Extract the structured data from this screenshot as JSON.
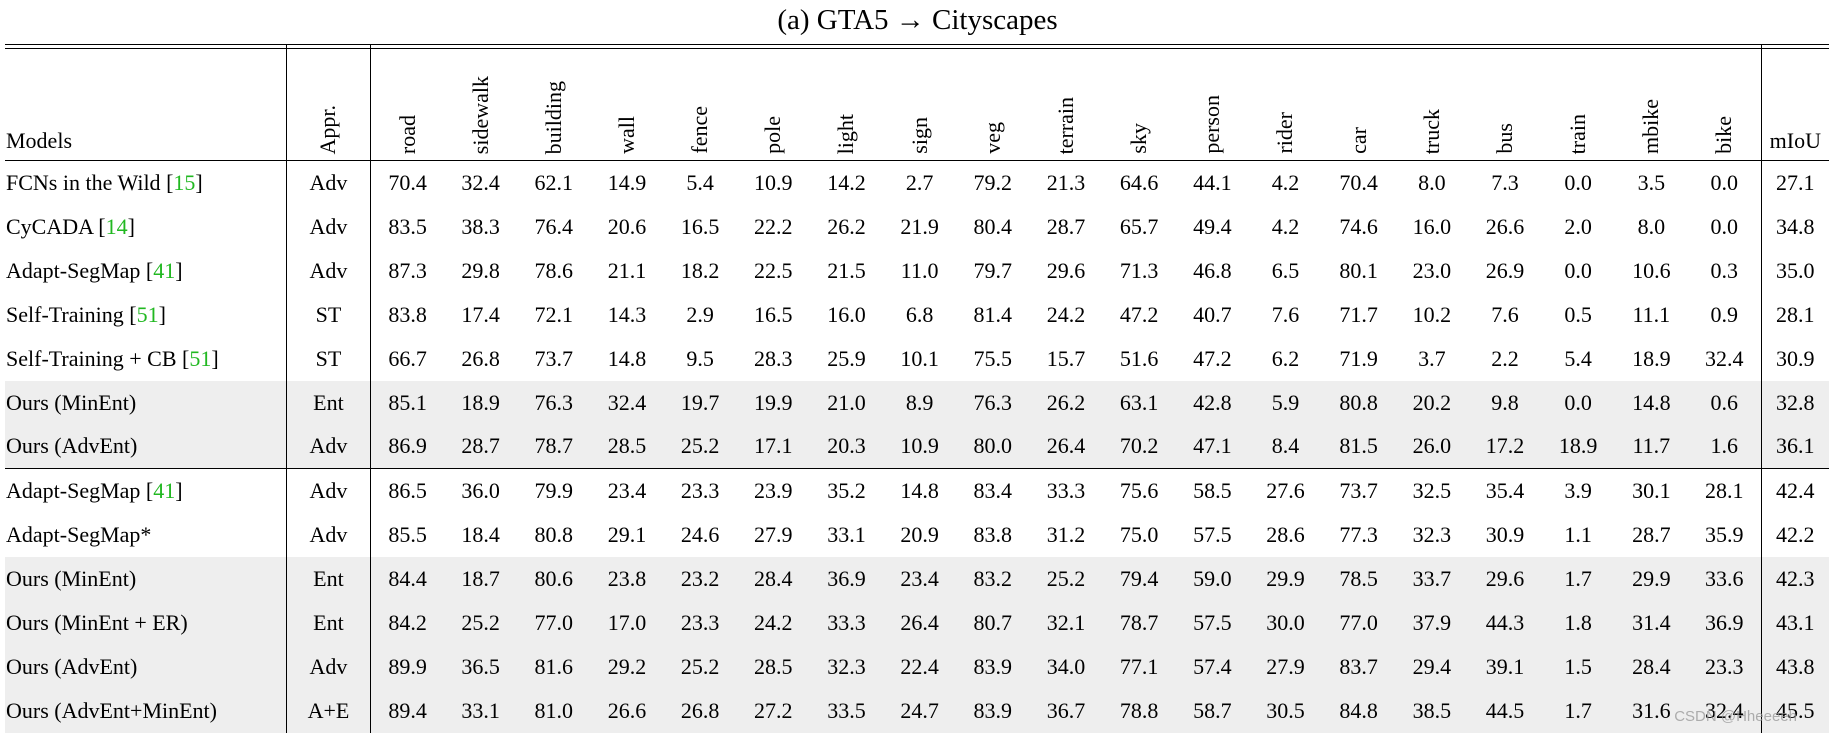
{
  "caption": "(a) GTA5 → Cityscapes",
  "headers": {
    "models": "Models",
    "appr": "Appr.",
    "classes": [
      "road",
      "sidewalk",
      "building",
      "wall",
      "fence",
      "pole",
      "light",
      "sign",
      "veg",
      "terrain",
      "sky",
      "person",
      "rider",
      "car",
      "truck",
      "bus",
      "train",
      "mbike",
      "bike"
    ],
    "miou": "mIoU"
  },
  "group1": [
    {
      "model": "FCNs in the Wild ",
      "ref": "15",
      "appr": "Adv",
      "shaded": false,
      "values": [
        "70.4",
        "32.4",
        "62.1",
        "14.9",
        "5.4",
        "10.9",
        "14.2",
        "2.7",
        "79.2",
        "21.3",
        "64.6",
        "44.1",
        "4.2",
        "70.4",
        "8.0",
        "7.3",
        "0.0",
        "3.5",
        "0.0"
      ],
      "bold": [],
      "miou": "27.1",
      "miou_bold": false
    },
    {
      "model": "CyCADA ",
      "ref": "14",
      "appr": "Adv",
      "shaded": false,
      "values": [
        "83.5",
        "38.3",
        "76.4",
        "20.6",
        "16.5",
        "22.2",
        "26.2",
        "21.9",
        "80.4",
        "28.7",
        "65.7",
        "49.4",
        "4.2",
        "74.6",
        "16.0",
        "26.6",
        "2.0",
        "8.0",
        "0.0"
      ],
      "bold": [
        1
      ],
      "miou": "34.8",
      "miou_bold": false
    },
    {
      "model": "Adapt-SegMap ",
      "ref": "41",
      "appr": "Adv",
      "shaded": false,
      "values": [
        "87.3",
        "29.8",
        "78.6",
        "21.1",
        "18.2",
        "22.5",
        "21.5",
        "11.0",
        "79.7",
        "29.6",
        "71.3",
        "46.8",
        "6.5",
        "80.1",
        "23.0",
        "26.9",
        "0.0",
        "10.6",
        "0.3"
      ],
      "bold": [],
      "miou": "35.0",
      "miou_bold": false
    },
    {
      "model": "Self-Training ",
      "ref": "51",
      "appr": "ST",
      "shaded": false,
      "values": [
        "83.8",
        "17.4",
        "72.1",
        "14.3",
        "2.9",
        "16.5",
        "16.0",
        "6.8",
        "81.4",
        "24.2",
        "47.2",
        "40.7",
        "7.6",
        "71.7",
        "10.2",
        "7.6",
        "0.5",
        "11.1",
        "0.9"
      ],
      "bold": [],
      "miou": "28.1",
      "miou_bold": false
    },
    {
      "model": "Self-Training + CB ",
      "ref": "51",
      "appr": "ST",
      "shaded": false,
      "values": [
        "66.7",
        "26.8",
        "73.7",
        "14.8",
        "9.5",
        "28.3",
        "25.9",
        "10.1",
        "75.5",
        "15.7",
        "51.6",
        "47.2",
        "6.2",
        "71.9",
        "3.7",
        "2.2",
        "5.4",
        "18.9",
        "32.4"
      ],
      "bold": [],
      "miou": "30.9",
      "miou_bold": false
    },
    {
      "model": "Ours (MinEnt)",
      "ref": "",
      "appr": "Ent",
      "shaded": true,
      "values": [
        "85.1",
        "18.9",
        "76.3",
        "32.4",
        "19.7",
        "19.9",
        "21.0",
        "8.9",
        "76.3",
        "26.2",
        "63.1",
        "42.8",
        "5.9",
        "80.8",
        "20.2",
        "9.8",
        "0.0",
        "14.8",
        "0.6"
      ],
      "bold": [],
      "miou": "32.8",
      "miou_bold": false
    },
    {
      "model": "Ours (AdvEnt)",
      "ref": "",
      "appr": "Adv",
      "shaded": true,
      "values": [
        "86.9",
        "28.7",
        "78.7",
        "28.5",
        "25.2",
        "17.1",
        "20.3",
        "10.9",
        "80.0",
        "26.4",
        "70.2",
        "47.1",
        "8.4",
        "81.5",
        "26.0",
        "17.2",
        "18.9",
        "11.7",
        "1.6"
      ],
      "bold": [
        16
      ],
      "miou": "36.1",
      "miou_bold": false
    }
  ],
  "group2": [
    {
      "model": "Adapt-SegMap ",
      "ref": "41",
      "appr": "Adv",
      "shaded": false,
      "values": [
        "86.5",
        "36.0",
        "79.9",
        "23.4",
        "23.3",
        "23.9",
        "35.2",
        "14.8",
        "83.4",
        "33.3",
        "75.6",
        "58.5",
        "27.6",
        "73.7",
        "32.5",
        "35.4",
        "3.9",
        "30.1",
        "28.1"
      ],
      "bold": [],
      "miou": "42.4",
      "miou_bold": false
    },
    {
      "model": "Adapt-SegMap*",
      "ref": "",
      "appr": "Adv",
      "shaded": false,
      "values": [
        "85.5",
        "18.4",
        "80.8",
        "29.1",
        "24.6",
        "27.9",
        "33.1",
        "20.9",
        "83.8",
        "31.2",
        "75.0",
        "57.5",
        "28.6",
        "77.3",
        "32.3",
        "30.9",
        "1.1",
        "28.7",
        "35.9"
      ],
      "bold": [],
      "miou": "42.2",
      "miou_bold": false
    },
    {
      "model": "Ours (MinEnt)",
      "ref": "",
      "appr": "Ent",
      "shaded": true,
      "values": [
        "84.4",
        "18.7",
        "80.6",
        "23.8",
        "23.2",
        "28.4",
        "36.9",
        "23.4",
        "83.2",
        "25.2",
        "79.4",
        "59.0",
        "29.9",
        "78.5",
        "33.7",
        "29.6",
        "1.7",
        "29.9",
        "33.6"
      ],
      "bold": [
        6,
        10
      ],
      "miou": "42.3",
      "miou_bold": false
    },
    {
      "model": "Ours (MinEnt + ER)",
      "ref": "",
      "appr": "Ent",
      "shaded": true,
      "values": [
        "84.2",
        "25.2",
        "77.0",
        "17.0",
        "23.3",
        "24.2",
        "33.3",
        "26.4",
        "80.7",
        "32.1",
        "78.7",
        "57.5",
        "30.0",
        "77.0",
        "37.9",
        "44.3",
        "1.8",
        "31.4",
        "36.9"
      ],
      "bold": [
        7,
        18
      ],
      "miou": "43.1",
      "miou_bold": false
    },
    {
      "model": "Ours (AdvEnt)",
      "ref": "",
      "appr": "Adv",
      "shaded": true,
      "values": [
        "89.9",
        "36.5",
        "81.6",
        "29.2",
        "25.2",
        "28.5",
        "32.3",
        "22.4",
        "83.9",
        "34.0",
        "77.1",
        "57.4",
        "27.9",
        "83.7",
        "29.4",
        "39.1",
        "1.5",
        "28.4",
        "23.3"
      ],
      "bold": [
        0,
        2,
        3,
        5
      ],
      "miou": "43.8",
      "miou_bold": false
    },
    {
      "model": "Ours (AdvEnt+MinEnt)",
      "ref": "",
      "appr": "A+E",
      "shaded": true,
      "values": [
        "89.4",
        "33.1",
        "81.0",
        "26.6",
        "26.8",
        "27.2",
        "33.5",
        "24.7",
        "83.9",
        "36.7",
        "78.8",
        "58.7",
        "30.5",
        "84.8",
        "38.5",
        "44.5",
        "1.7",
        "31.6",
        "32.4"
      ],
      "bold": [
        4,
        8,
        9,
        11,
        12,
        13,
        14,
        15,
        17
      ],
      "miou": "45.5",
      "miou_bold": true
    }
  ],
  "watermark": "CSDN @Hheeeeh"
}
